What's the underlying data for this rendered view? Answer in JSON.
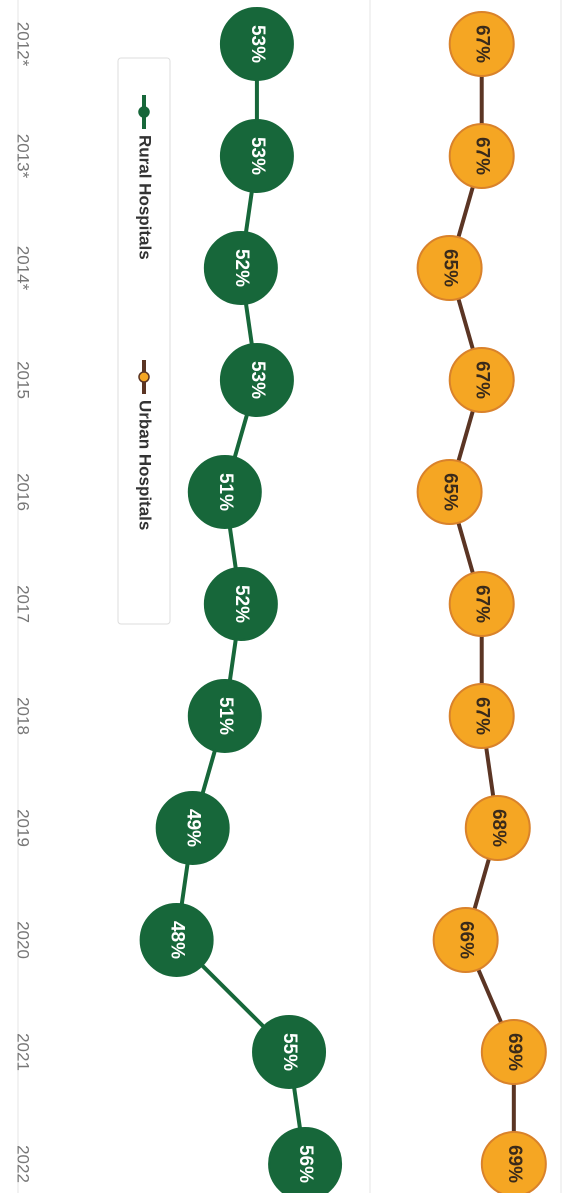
{
  "chart_data": {
    "type": "line",
    "categories": [
      "2012*",
      "2013*",
      "2014*",
      "2015",
      "2016",
      "2017",
      "2018",
      "2019",
      "2020",
      "2021",
      "2022"
    ],
    "series": [
      {
        "name": "Rural Hospitals",
        "color": "#17673a",
        "marker_color": "#17673a",
        "label_color": "#ffffff",
        "values": [
          53,
          53,
          52,
          53,
          51,
          52,
          51,
          49,
          48,
          55,
          56
        ],
        "value_labels": [
          "53%",
          "53%",
          "52%",
          "53%",
          "51%",
          "52%",
          "51%",
          "49%",
          "48%",
          "55%",
          "56%"
        ]
      },
      {
        "name": "Urban Hospitals",
        "color": "#5b3524",
        "marker_color": "#f5a623",
        "label_color": "#3a2a1a",
        "values": [
          67,
          67,
          65,
          67,
          65,
          67,
          67,
          68,
          66,
          69,
          69
        ],
        "value_labels": [
          "67%",
          "67%",
          "65%",
          "67%",
          "65%",
          "67%",
          "67%",
          "68%",
          "66%",
          "69%",
          "69%"
        ]
      }
    ],
    "ylim": [
      37,
      72
    ],
    "legend": "top"
  }
}
